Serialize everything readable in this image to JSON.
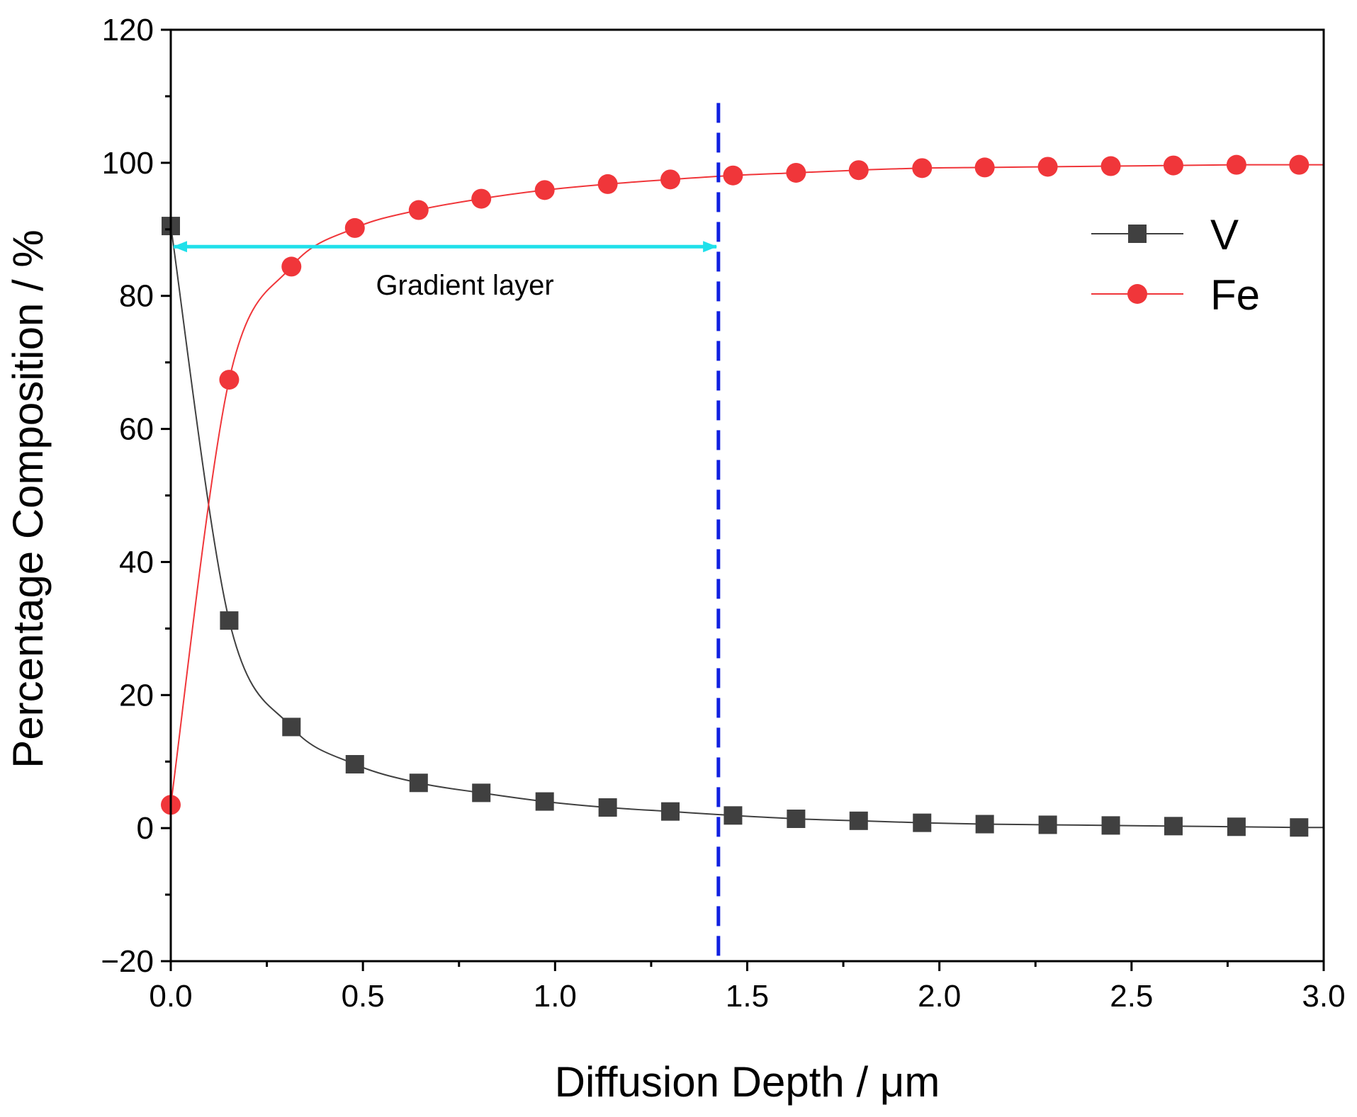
{
  "chart_data": {
    "type": "line",
    "title": "",
    "xlabel": "Diffusion Depth / μm",
    "ylabel": "Percentage Composition / %",
    "xlim": [
      0,
      3
    ],
    "ylim": [
      -20,
      120
    ],
    "xticks": [
      0.0,
      0.5,
      1.0,
      1.5,
      2.0,
      2.5,
      3.0
    ],
    "xtick_labels": [
      "0.0",
      "0.5",
      "1.0",
      "1.5",
      "2.0",
      "2.5",
      "3.0"
    ],
    "yticks": [
      -20,
      0,
      20,
      40,
      60,
      80,
      100,
      120
    ],
    "ytick_labels": [
      "−20",
      "0",
      "20",
      "40",
      "60",
      "80",
      "100",
      "120"
    ],
    "grid": false,
    "legend_position": "top-right",
    "series": [
      {
        "name": "V",
        "color": "#404040",
        "marker": "square",
        "x": [
          0.0,
          0.152,
          0.314,
          0.479,
          0.645,
          0.808,
          0.973,
          1.137,
          1.3,
          1.463,
          1.627,
          1.79,
          1.955,
          2.118,
          2.282,
          2.446,
          2.609,
          2.773,
          2.936
        ],
        "values": [
          90.5,
          31.2,
          15.2,
          9.6,
          6.8,
          5.3,
          4.0,
          3.1,
          2.5,
          1.9,
          1.4,
          1.1,
          0.8,
          0.6,
          0.5,
          0.4,
          0.3,
          0.2,
          0.1
        ]
      },
      {
        "name": "Fe",
        "color": "#f0363a",
        "marker": "circle",
        "x": [
          0.0,
          0.152,
          0.314,
          0.479,
          0.645,
          0.808,
          0.973,
          1.137,
          1.3,
          1.463,
          1.627,
          1.79,
          1.955,
          2.118,
          2.282,
          2.446,
          2.609,
          2.773,
          2.936
        ],
        "values": [
          3.5,
          67.4,
          84.4,
          90.2,
          92.9,
          94.6,
          95.9,
          96.8,
          97.5,
          98.1,
          98.5,
          98.9,
          99.2,
          99.3,
          99.4,
          99.5,
          99.6,
          99.7,
          99.7
        ]
      }
    ],
    "annotations": {
      "gradient_label": "Gradient layer",
      "arrow_x_start": 0.0,
      "arrow_x_end": 1.42,
      "arrow_y": 87.4,
      "arrow_color": "#1fe0ea",
      "boundary_x": 1.425,
      "boundary_y_top": 109,
      "boundary_color": "#1020e0"
    }
  }
}
